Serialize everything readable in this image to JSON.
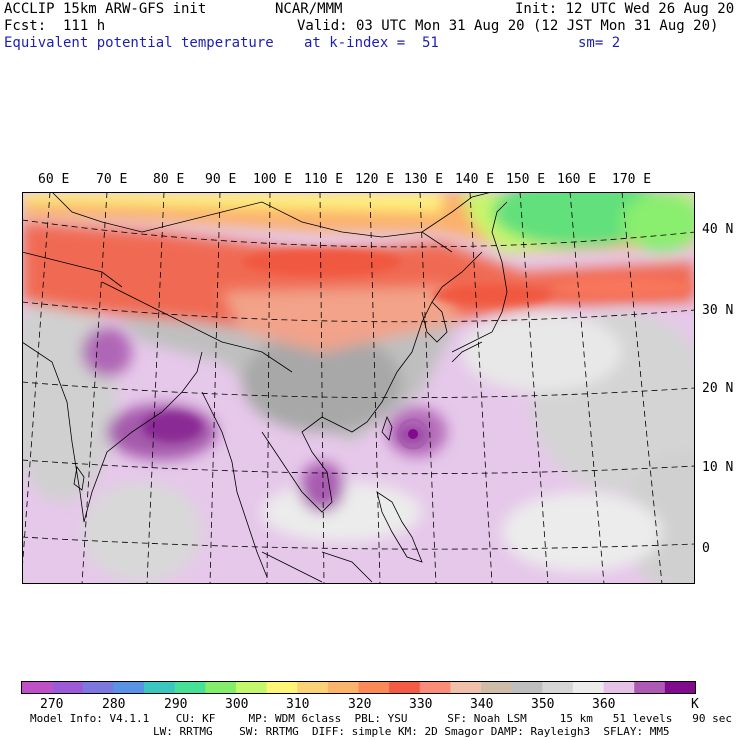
{
  "header": {
    "left_line1": "ACCLIP 15km ARW-GFS init",
    "left_line2": "Fcst:  111 h",
    "left_line3": "Equivalent potential temperature",
    "center_line1": "NCAR/MMM",
    "center_line2": "Valid: 03 UTC Mon 31 Aug 20 (12 JST Mon 31 Aug 20)",
    "center_line3": "at k-index =  51",
    "right_line1": "Init: 12 UTC Wed 26 Aug 20",
    "right_line3": "sm= 2"
  },
  "map": {
    "longitude_labels": [
      "60 E",
      "70 E",
      "80 E",
      "90 E",
      "100 E",
      "110 E",
      "120 E",
      "130 E",
      "140 E",
      "150 E",
      "160 E",
      "170 E"
    ],
    "latitude_labels": [
      "40 N",
      "30 N",
      "20 N",
      "10 N",
      "0"
    ],
    "feature": "typhoon-eye near 20N 130E"
  },
  "colorbar": {
    "tick_labels": [
      "270",
      "280",
      "290",
      "300",
      "310",
      "320",
      "330",
      "340",
      "350",
      "360"
    ],
    "unit": "K",
    "colors": [
      "#c050c8",
      "#9c5ad8",
      "#7c78e0",
      "#5a92e6",
      "#3cc6c0",
      "#46e096",
      "#82ee6a",
      "#c4f86c",
      "#fff678",
      "#fcd276",
      "#fcb46a",
      "#fc8a56",
      "#f55a44",
      "#fa8c78",
      "#f0c0aa",
      "#cfbca8",
      "#bebebe",
      "#d6d6d6",
      "#ececec",
      "#e6c2e6",
      "#ae5ab4",
      "#820a8c"
    ]
  },
  "footer": {
    "line1": "Model Info: V4.1.1    CU: KF     MP: WDM 6class  PBL: YSU      SF: Noah LSM     15 km   51 levels   90 sec",
    "line2": "LW: RRTMG    SW: RRTMG  DIFF: simple KM: 2D Smagor DAMP: Rayleigh3  SFLAY: MM5"
  }
}
